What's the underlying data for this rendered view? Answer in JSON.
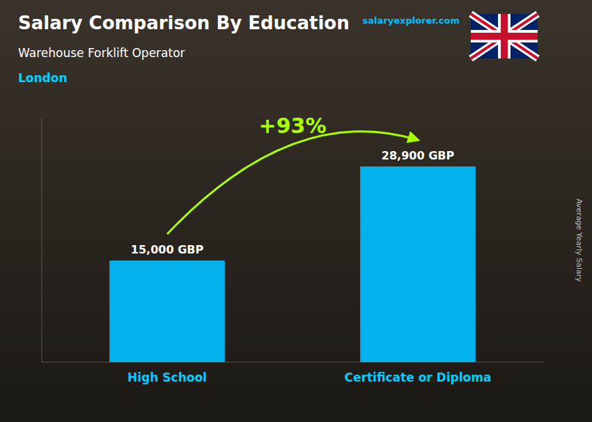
{
  "chart_data": {
    "type": "bar",
    "title": "Salary Comparison By Education",
    "subtitle": "Warehouse Forklift Operator",
    "annotations": [
      "London",
      "+93%",
      "salaryexplorer.com"
    ],
    "ylabel": "Average Yearly Salary",
    "categories": [
      "High School",
      "Certificate or Diploma"
    ],
    "values": [
      15000,
      28900
    ],
    "value_labels": [
      "15,000 GBP",
      "28,900 GBP"
    ],
    "data_labels": true,
    "color": "#00BFFF",
    "ylim": [
      0,
      36000
    ],
    "grid": false,
    "tick_labels": false
  }
}
